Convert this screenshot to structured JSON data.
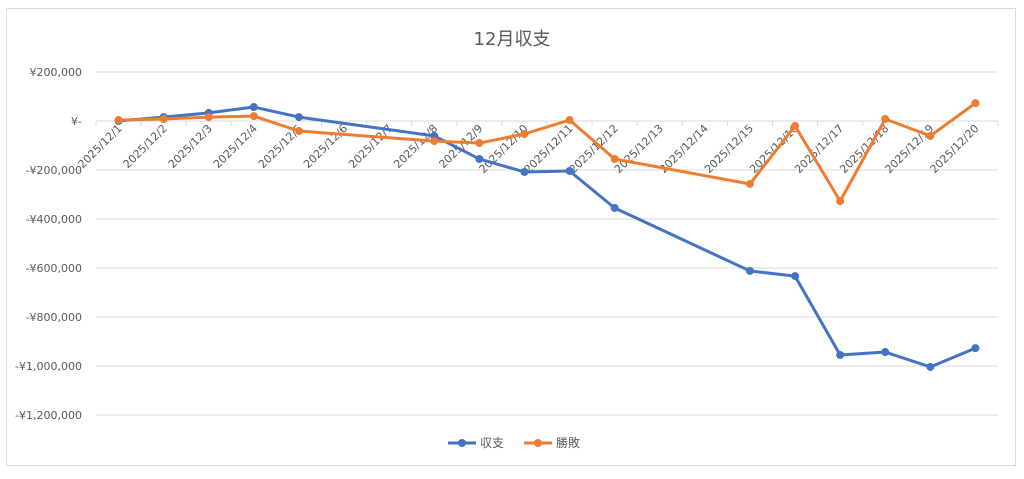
{
  "chart_data": {
    "type": "line",
    "title": "12月収支",
    "xlabel": "",
    "ylabel": "",
    "categories": [
      "2025/12/1",
      "2025/12/2",
      "2025/12/3",
      "2025/12/4",
      "2025/12/5",
      "2025/12/6",
      "2025/12/7",
      "2025/12/8",
      "2025/12/9",
      "2025/12/10",
      "2025/12/11",
      "2025/12/12",
      "2025/12/13",
      "2025/12/14",
      "2025/12/15",
      "2025/12/16",
      "2025/12/17",
      "2025/12/18",
      "2025/12/19",
      "2025/12/20"
    ],
    "ylim": [
      -1200000,
      200000
    ],
    "yticks": [
      200000,
      0,
      -200000,
      -400000,
      -600000,
      -800000,
      -1000000,
      -1200000
    ],
    "ytick_labels": [
      "¥200,000",
      "¥-",
      "-¥200,000",
      "-¥400,000",
      "-¥600,000",
      "-¥800,000",
      "-¥1,000,000",
      "-¥1,200,000"
    ],
    "grid": true,
    "legend_position": "bottom",
    "series": [
      {
        "name": "収支",
        "color": "#4472c4",
        "values": [
          0,
          16000,
          33000,
          57000,
          16000,
          null,
          null,
          -61000,
          -155000,
          -208000,
          -204000,
          -355000,
          null,
          null,
          -612000,
          -633000,
          -955000,
          -943000,
          -1004000,
          -927000
        ]
      },
      {
        "name": "勝敗",
        "color": "#ed7d31",
        "values": [
          4000,
          8000,
          16000,
          20000,
          -41000,
          null,
          null,
          -82000,
          -90000,
          -53000,
          4000,
          -155000,
          null,
          null,
          -257000,
          -20000,
          -327000,
          8000,
          -61000,
          73000
        ]
      }
    ]
  }
}
